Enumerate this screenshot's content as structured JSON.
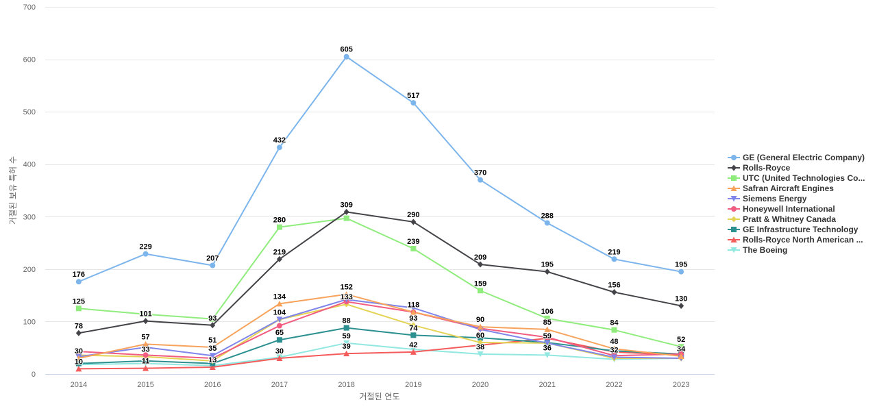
{
  "chart_data": {
    "type": "line",
    "title": "",
    "xlabel": "거절된 연도",
    "ylabel": "거절된 보유 특허 수",
    "ylim": [
      0,
      700
    ],
    "yticks": [
      0,
      100,
      200,
      300,
      400,
      500,
      600,
      700
    ],
    "grid": true,
    "legend_position": "right",
    "categories": [
      "2014",
      "2015",
      "2016",
      "2017",
      "2018",
      "2019",
      "2020",
      "2021",
      "2022",
      "2023"
    ],
    "series": [
      {
        "name": "GE (General Electric Company)",
        "color": "#7cb5ec",
        "marker": "circle",
        "values": [
          176,
          229,
          207,
          432,
          605,
          517,
          370,
          288,
          219,
          195
        ],
        "labeled": true
      },
      {
        "name": "Rolls-Royce",
        "color": "#434348",
        "marker": "diamond",
        "values": [
          78,
          101,
          93,
          219,
          309,
          290,
          209,
          195,
          156,
          130
        ],
        "labeled": true
      },
      {
        "name": "UTC (United Technologies Co...",
        "color": "#90ed7d",
        "marker": "square",
        "values": [
          125,
          114,
          105,
          280,
          297,
          239,
          159,
          106,
          84,
          52
        ],
        "labeled": true,
        "unlabeled_indexes": [
          1,
          2,
          4
        ]
      },
      {
        "name": "Safran Aircraft Engines",
        "color": "#f7a35c",
        "marker": "triangle",
        "values": [
          30,
          57,
          51,
          134,
          152,
          118,
          90,
          85,
          48,
          34
        ],
        "labeled": true
      },
      {
        "name": "Siemens Energy",
        "color": "#8085e9",
        "marker": "triangle-down",
        "values": [
          33,
          51,
          35,
          104,
          142,
          126,
          85,
          59,
          32,
          30
        ],
        "labeled": false
      },
      {
        "name": "Honeywell International",
        "color": "#f15c80",
        "marker": "circle",
        "values": [
          43,
          36,
          30,
          92,
          138,
          118,
          87,
          70,
          35,
          38
        ],
        "labeled": false
      },
      {
        "name": "Pratt & Whitney Canada",
        "color": "#e4d354",
        "marker": "diamond",
        "values": [
          36,
          33,
          25,
          104,
          133,
          93,
          60,
          59,
          30,
          30
        ],
        "labeled": false
      },
      {
        "name": "GE Infrastructure Technology",
        "color": "#2b908f",
        "marker": "square",
        "values": [
          20,
          25,
          20,
          65,
          88,
          74,
          69,
          60,
          44,
          38
        ],
        "labeled": false
      },
      {
        "name": "Rolls-Royce North American ...",
        "color": "#f45b5b",
        "marker": "triangle",
        "values": [
          10,
          11,
          13,
          30,
          39,
          42,
          55,
          68,
          42,
          36
        ],
        "labeled": false
      },
      {
        "name": "The Boeing",
        "color": "#91e8e1",
        "marker": "triangle-down",
        "values": [
          18,
          20,
          16,
          32,
          59,
          47,
          38,
          36,
          28,
          30
        ],
        "labeled": false
      }
    ],
    "extra_labels": [
      {
        "x_index": 0,
        "value": 30,
        "text": "30",
        "series": "Safran Aircraft Engines"
      },
      {
        "x_index": 0,
        "value": 10,
        "text": "10",
        "series": "Rolls-Royce North American ..."
      },
      {
        "x_index": 1,
        "value": 33,
        "text": "33",
        "series": "Siemens Energy"
      },
      {
        "x_index": 1,
        "value": 11,
        "text": "11",
        "series": "Rolls-Royce North American ..."
      },
      {
        "x_index": 2,
        "value": 35,
        "text": "35",
        "series": "Siemens Energy"
      },
      {
        "x_index": 2,
        "value": 13,
        "text": "13",
        "series": "Rolls-Royce North American ..."
      },
      {
        "x_index": 3,
        "value": 104,
        "text": "104",
        "series": "Siemens Energy"
      },
      {
        "x_index": 3,
        "value": 65,
        "text": "65",
        "series": "GE Infrastructure Technology"
      },
      {
        "x_index": 3,
        "value": 30,
        "text": "30",
        "series": "Rolls-Royce North American ..."
      },
      {
        "x_index": 4,
        "value": 133,
        "text": "133",
        "series": "Pratt & Whitney Canada"
      },
      {
        "x_index": 4,
        "value": 88,
        "text": "88",
        "series": "GE Infrastructure Technology"
      },
      {
        "x_index": 4,
        "value": 59,
        "text": "59",
        "series": "The Boeing"
      },
      {
        "x_index": 4,
        "value": 39,
        "text": "39",
        "series": "Rolls-Royce North American ..."
      },
      {
        "x_index": 5,
        "value": 93,
        "text": "93",
        "series": "Pratt & Whitney Canada"
      },
      {
        "x_index": 5,
        "value": 74,
        "text": "74",
        "series": "GE Infrastructure Technology"
      },
      {
        "x_index": 5,
        "value": 42,
        "text": "42",
        "series": "Rolls-Royce North American ..."
      },
      {
        "x_index": 6,
        "value": 60,
        "text": "60",
        "series": "Pratt & Whitney Canada"
      },
      {
        "x_index": 6,
        "value": 38,
        "text": "38",
        "series": "The Boeing"
      },
      {
        "x_index": 7,
        "value": 59,
        "text": "59",
        "series": "Siemens Energy"
      },
      {
        "x_index": 7,
        "value": 36,
        "text": "36",
        "series": "The Boeing"
      },
      {
        "x_index": 8,
        "value": 32,
        "text": "32",
        "series": "Siemens Energy"
      }
    ]
  }
}
